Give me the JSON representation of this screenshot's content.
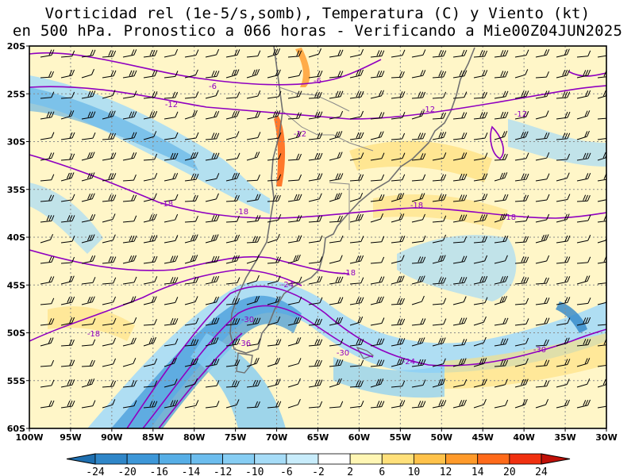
{
  "title": {
    "line1": "Vorticidad rel (1e-5/s,somb), Temperatura (C) y Viento (kt)",
    "line2": "en 500 hPa. Pronostico a 066 horas - Verificando a Mie00Z04JUN2025"
  },
  "axes": {
    "lat_labels": [
      "20S",
      "25S",
      "30S",
      "35S",
      "40S",
      "45S",
      "50S",
      "55S",
      "60S"
    ],
    "lon_labels": [
      "100W",
      "95W",
      "90W",
      "85W",
      "80W",
      "75W",
      "70W",
      "65W",
      "60W",
      "55W",
      "50W",
      "45W",
      "40W",
      "35W",
      "30W"
    ]
  },
  "colorbar": {
    "ticks": [
      "-24",
      "-20",
      "-16",
      "-14",
      "-12",
      "-10",
      "-6",
      "-2",
      "2",
      "6",
      "10",
      "12",
      "14",
      "20",
      "24"
    ],
    "colors": [
      "#1e6fb0",
      "#2f86c8",
      "#3d97d8",
      "#56aee6",
      "#6cbdee",
      "#86cdf3",
      "#a6dcf7",
      "#c8ecfb",
      "#ffffff",
      "#fff6b4",
      "#ffe07a",
      "#ffc24a",
      "#ff9a2a",
      "#ff6a1a",
      "#f03010",
      "#c01008"
    ]
  },
  "contour_labels": [
    {
      "text": "-6",
      "color": "#9000c0"
    },
    {
      "text": "-6",
      "color": "#9000c0"
    },
    {
      "text": "-12",
      "color": "#9000c0"
    },
    {
      "text": "-12",
      "color": "#9000c0"
    },
    {
      "text": "-12",
      "color": "#9000c0"
    },
    {
      "text": "-12",
      "color": "#9000c0"
    },
    {
      "text": "-18",
      "color": "#9000c0"
    },
    {
      "text": "-18",
      "color": "#9000c0"
    },
    {
      "text": "-18",
      "color": "#9000c0"
    },
    {
      "text": "-18",
      "color": "#9000c0"
    },
    {
      "text": "-18",
      "color": "#9000c0"
    },
    {
      "text": "-18",
      "color": "#9000c0"
    },
    {
      "text": "-24",
      "color": "#9000c0"
    },
    {
      "text": "-24",
      "color": "#9000c0"
    },
    {
      "text": "-30",
      "color": "#9000c0"
    },
    {
      "text": "-30",
      "color": "#9000c0"
    },
    {
      "text": "-30",
      "color": "#9000c0"
    },
    {
      "text": "-36",
      "color": "#9000c0"
    }
  ],
  "colors": {
    "contour": "#9000c0",
    "coast": "#707070",
    "frame": "#000000",
    "grid": "#8a8a8a"
  }
}
